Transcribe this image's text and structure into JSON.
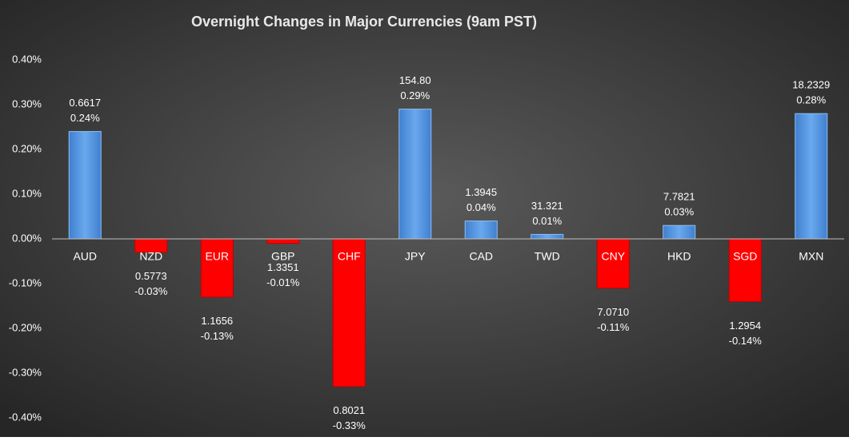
{
  "chart_data": {
    "type": "bar",
    "title": "Overnight Changes in Major Currencies (9am PST)",
    "categories": [
      "AUD",
      "NZD",
      "EUR",
      "GBP",
      "CHF",
      "JPY",
      "CAD",
      "TWD",
      "CNY",
      "HKD",
      "SGD",
      "MXN"
    ],
    "values": [
      0.24,
      -0.03,
      -0.13,
      -0.01,
      -0.33,
      0.29,
      0.04,
      0.01,
      -0.11,
      0.03,
      -0.14,
      0.28
    ],
    "value_labels": [
      "0.24%",
      "-0.03%",
      "-0.13%",
      "-0.01%",
      "-0.33%",
      "0.29%",
      "0.04%",
      "0.01%",
      "-0.11%",
      "0.03%",
      "-0.14%",
      "0.28%"
    ],
    "rates": [
      "0.6617",
      "0.5773",
      "1.1656",
      "1.3351",
      "0.8021",
      "154.80",
      "1.3945",
      "31.321",
      "7.0710",
      "7.7821",
      "1.2954",
      "18.2329"
    ],
    "positive_color": "#5b9be0",
    "negative_color": "#ff0000",
    "ylim": [
      -0.4,
      0.4
    ],
    "yticks": [
      {
        "value": -0.4,
        "label": "-0.40%"
      },
      {
        "value": -0.3,
        "label": "-0.30%"
      },
      {
        "value": -0.2,
        "label": "-0.20%"
      },
      {
        "value": -0.1,
        "label": "-0.10%"
      },
      {
        "value": 0,
        "label": "0.00%"
      },
      {
        "value": 0.1,
        "label": "0.10%"
      },
      {
        "value": 0.2,
        "label": "0.20%"
      },
      {
        "value": 0.3,
        "label": "0.30%"
      },
      {
        "value": 0.4,
        "label": "0.40%"
      }
    ],
    "grid": false
  }
}
